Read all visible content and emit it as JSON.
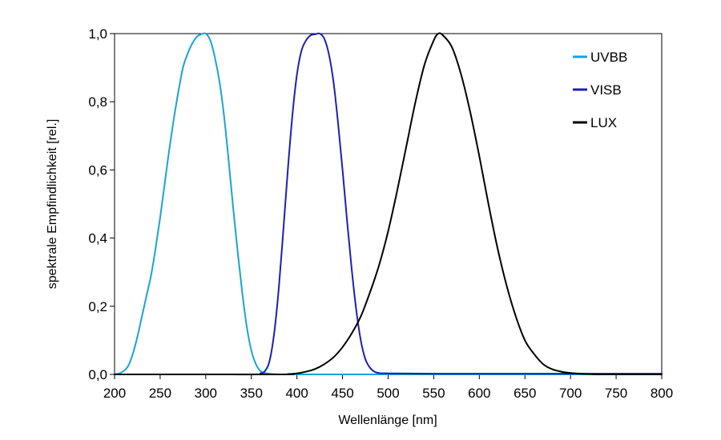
{
  "chart_data": {
    "type": "line",
    "title": "",
    "xlabel": "Wellenlänge [nm]",
    "ylabel": "spektrale Empfindlichkeit [rel.]",
    "xlim": [
      200,
      800
    ],
    "ylim": [
      0,
      1
    ],
    "xticks": [
      "200",
      "250",
      "300",
      "350",
      "400",
      "450",
      "500",
      "550",
      "600",
      "650",
      "700",
      "750",
      "800"
    ],
    "yticks": [
      "0,0",
      "0,2",
      "0,4",
      "0,6",
      "0,8",
      "1,0"
    ],
    "grid": false,
    "legend_position": "top-right",
    "series": [
      {
        "name": "UVBB",
        "color": "#1ba3d6",
        "x": [
          200,
          205,
          210,
          215,
          220,
          225,
          230,
          235,
          240,
          245,
          250,
          255,
          260,
          265,
          270,
          275,
          280,
          285,
          290,
          295,
          300,
          305,
          310,
          315,
          320,
          325,
          330,
          335,
          340,
          345,
          350,
          355,
          360,
          365,
          370,
          380,
          400,
          450,
          500,
          550,
          600,
          700,
          800
        ],
        "y": [
          0.0,
          0.003,
          0.01,
          0.025,
          0.06,
          0.11,
          0.17,
          0.23,
          0.29,
          0.37,
          0.46,
          0.56,
          0.66,
          0.75,
          0.83,
          0.9,
          0.94,
          0.97,
          0.99,
          0.998,
          1.0,
          0.98,
          0.93,
          0.86,
          0.76,
          0.63,
          0.49,
          0.36,
          0.24,
          0.14,
          0.07,
          0.03,
          0.01,
          0.004,
          0.002,
          0.0,
          0.0,
          0.0,
          0.0,
          0.0,
          0.0,
          0.0,
          0.0
        ]
      },
      {
        "name": "VISB",
        "color": "#1f1fb4",
        "x": [
          200,
          300,
          355,
          360,
          365,
          370,
          375,
          380,
          385,
          390,
          395,
          400,
          405,
          410,
          415,
          420,
          425,
          430,
          435,
          440,
          445,
          450,
          455,
          460,
          465,
          470,
          475,
          480,
          485,
          490,
          500,
          550,
          600,
          700,
          800
        ],
        "y": [
          0.0,
          0.0,
          0.0,
          0.003,
          0.01,
          0.04,
          0.12,
          0.25,
          0.42,
          0.6,
          0.76,
          0.88,
          0.95,
          0.98,
          0.995,
          0.998,
          1.0,
          0.985,
          0.94,
          0.86,
          0.74,
          0.6,
          0.45,
          0.31,
          0.19,
          0.1,
          0.045,
          0.02,
          0.008,
          0.004,
          0.003,
          0.002,
          0.002,
          0.002,
          0.002
        ]
      },
      {
        "name": "LUX",
        "color": "#000000",
        "x": [
          200,
          380,
          390,
          400,
          410,
          420,
          430,
          440,
          450,
          460,
          470,
          480,
          490,
          500,
          510,
          520,
          530,
          540,
          550,
          555,
          560,
          570,
          580,
          590,
          600,
          610,
          620,
          630,
          640,
          650,
          660,
          670,
          680,
          690,
          700,
          710,
          720,
          730,
          740,
          800
        ],
        "y": [
          0.0,
          0.0,
          0.001,
          0.003,
          0.008,
          0.016,
          0.03,
          0.05,
          0.08,
          0.12,
          0.17,
          0.24,
          0.32,
          0.42,
          0.54,
          0.67,
          0.8,
          0.91,
          0.98,
          1.0,
          0.995,
          0.96,
          0.88,
          0.77,
          0.64,
          0.5,
          0.37,
          0.26,
          0.17,
          0.1,
          0.06,
          0.03,
          0.015,
          0.008,
          0.004,
          0.002,
          0.001,
          0.0,
          0.0,
          0.0
        ]
      }
    ]
  }
}
